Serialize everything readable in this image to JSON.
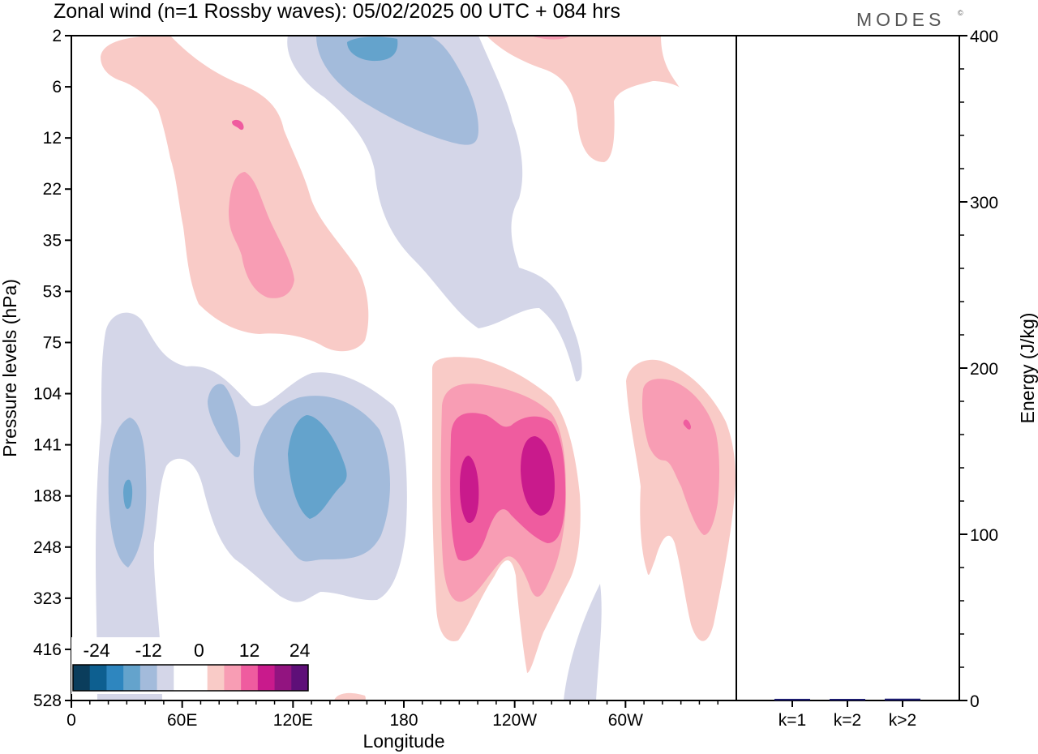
{
  "title": "Zonal wind (n=1 Rossby waves):  05/02/2025  00 UTC  + 084 hrs",
  "logo": "MODES",
  "logo_mark": "©",
  "colors": {
    "neg": [
      "#0b3d5c",
      "#0d5f90",
      "#2e86bf",
      "#64a3cc",
      "#a3bbdb",
      "#d4d6e8"
    ],
    "zero": "#ffffff",
    "pos": [
      "#f9cbc7",
      "#f89db4",
      "#ef5c9f",
      "#c91a8c",
      "#921480",
      "#5e0f78"
    ],
    "energy_bar": "#1a1a6e"
  },
  "chart_data": [
    {
      "type": "heatmap",
      "title": "Zonal wind (n=1 Rossby waves):  05/02/2025  00 UTC  + 084 hrs",
      "xlabel": "Longitude",
      "ylabel": "Pressure levels (hPa)",
      "x_ticks": [
        "0",
        "60E",
        "120E",
        "180",
        "120W",
        "60W"
      ],
      "x_tick_values": [
        0,
        60,
        120,
        180,
        240,
        300
      ],
      "xlim": [
        0,
        360
      ],
      "y_ticks": [
        "2",
        "6",
        "12",
        "22",
        "35",
        "53",
        "75",
        "104",
        "141",
        "188",
        "248",
        "323",
        "416",
        "528"
      ],
      "colorbar": {
        "labels": [
          "-24",
          "-12",
          "0",
          "12",
          "24"
        ],
        "levels": [
          -30,
          -25,
          -20,
          -15,
          -10,
          -5,
          0,
          5,
          10,
          15,
          20,
          25,
          30
        ]
      },
      "features": [
        {
          "sign": "negative",
          "lon": 153,
          "level": "6",
          "peak": -17
        },
        {
          "sign": "negative",
          "lon": 122,
          "level": "160",
          "peak": -16
        },
        {
          "sign": "negative",
          "lon": 30,
          "level": "188",
          "peak": -15
        },
        {
          "sign": "negative",
          "lon": 80,
          "level": "141",
          "peak": -9
        },
        {
          "sign": "positive",
          "lon": 212,
          "level": "188",
          "peak": 21
        },
        {
          "sign": "positive",
          "lon": 240,
          "level": "170",
          "peak": 20
        },
        {
          "sign": "positive",
          "lon": 320,
          "level": "141",
          "peak": 13
        },
        {
          "sign": "positive",
          "lon": 100,
          "level": "35",
          "peak": 12
        },
        {
          "sign": "positive",
          "lon": 270,
          "level": "6",
          "peak": 8
        }
      ]
    },
    {
      "type": "bar",
      "ylabel": "Energy (J/kg)",
      "categories": [
        "k=1",
        "k=2",
        "k>2"
      ],
      "values": [
        1.0,
        0.6,
        1.1
      ],
      "ylim": [
        0,
        400
      ],
      "y_ticks": [
        "0",
        "100",
        "200",
        "300",
        "400"
      ]
    }
  ]
}
